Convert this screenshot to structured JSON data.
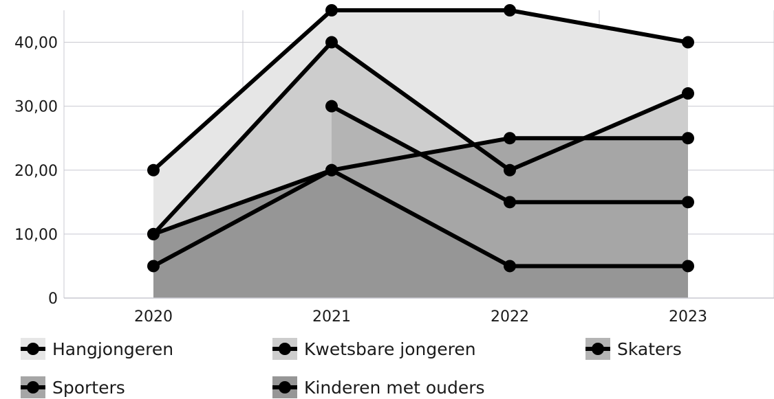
{
  "chart_data": {
    "type": "area",
    "categories": [
      "2020",
      "2021",
      "2022",
      "2023"
    ],
    "ylim": [
      0,
      45
    ],
    "y_ticks": [
      "0",
      "10,00",
      "20,00",
      "30,00",
      "40,00"
    ],
    "y_tick_values": [
      0,
      10,
      20,
      30,
      40
    ],
    "grid": true,
    "legend_position": "bottom",
    "series": [
      {
        "name": "Hangjongeren",
        "values": [
          20,
          45,
          45,
          40
        ],
        "fill": "#e6e6e6"
      },
      {
        "name": "Kwetsbare jongeren",
        "values": [
          10,
          40,
          20,
          32
        ],
        "fill": "#cdcdcd"
      },
      {
        "name": "Skaters",
        "values": [
          null,
          30,
          15,
          15
        ],
        "fill": "#b4b4b4"
      },
      {
        "name": "Sporters",
        "values": [
          5,
          20,
          25,
          25
        ],
        "fill": "#a6a6a6"
      },
      {
        "name": "Kinderen met ouders",
        "values": [
          10,
          20,
          5,
          5
        ],
        "fill": "#969696"
      }
    ],
    "line_color": "#000000",
    "grid_color": "#c8c8d0"
  }
}
